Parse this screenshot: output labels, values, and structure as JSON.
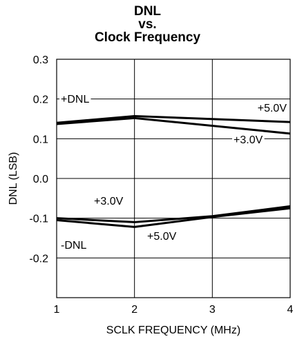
{
  "chart_data": {
    "type": "line",
    "title": [
      "DNL",
      "vs.",
      "Clock Frequency"
    ],
    "xlabel": "SCLK FREQUENCY (MHz)",
    "ylabel": "DNL (LSB)",
    "xlim": [
      1,
      4
    ],
    "ylim": [
      -0.3,
      0.3
    ],
    "x_ticks": [
      1,
      2,
      3,
      4
    ],
    "x_tick_labels": [
      "1",
      "2",
      "3",
      "4"
    ],
    "y_ticks": [
      0.3,
      0.2,
      0.1,
      0.0,
      -0.1,
      -0.2
    ],
    "y_tick_labels": [
      "0.3",
      "0.2",
      "0.1",
      "0.0",
      "-0.1",
      "-0.2"
    ],
    "grid": true,
    "series": [
      {
        "name": "+5.0V",
        "group": "+DNL",
        "x": [
          1,
          2,
          4
        ],
        "y": [
          0.14,
          0.157,
          0.142
        ]
      },
      {
        "name": "+3.0V",
        "group": "+DNL",
        "x": [
          1,
          2,
          4
        ],
        "y": [
          0.137,
          0.152,
          0.113
        ]
      },
      {
        "name": "+3.0V",
        "group": "-DNL",
        "x": [
          1,
          2,
          3,
          4
        ],
        "y": [
          -0.1,
          -0.11,
          -0.095,
          -0.07
        ]
      },
      {
        "name": "+5.0V",
        "group": "-DNL",
        "x": [
          1,
          2,
          3,
          4
        ],
        "y": [
          -0.105,
          -0.122,
          -0.097,
          -0.075
        ]
      }
    ],
    "annotations": {
      "pos_dnl": "+DNL",
      "neg_dnl": "-DNL",
      "pos_5v": "+5.0V",
      "pos_3v": "+3.0V",
      "neg_3v": "+3.0V",
      "neg_5v": "+5.0V"
    }
  }
}
